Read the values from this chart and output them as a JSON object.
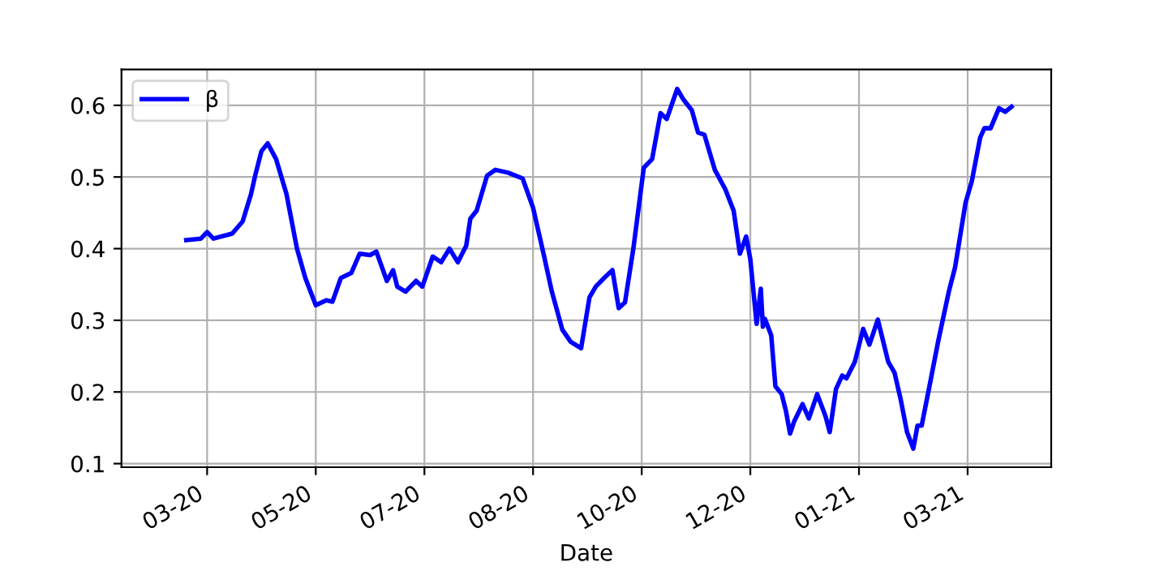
{
  "chart_data": {
    "type": "line",
    "xlabel": "Date",
    "x": [
      "2020-03-15",
      "2020-03-22",
      "2020-03-25",
      "2020-03-28",
      "2020-04-06",
      "2020-04-11",
      "2020-04-15",
      "2020-04-17",
      "2020-04-20",
      "2020-04-23",
      "2020-04-27",
      "2020-05-02",
      "2020-05-07",
      "2020-05-11",
      "2020-05-16",
      "2020-05-21",
      "2020-05-24",
      "2020-05-28",
      "2020-06-02",
      "2020-06-06",
      "2020-06-11",
      "2020-06-14",
      "2020-06-19",
      "2020-06-22",
      "2020-06-24",
      "2020-06-28",
      "2020-07-03",
      "2020-07-06",
      "2020-07-11",
      "2020-07-15",
      "2020-07-19",
      "2020-07-23",
      "2020-07-27",
      "2020-07-29",
      "2020-08-01",
      "2020-08-06",
      "2020-08-10",
      "2020-08-16",
      "2020-08-23",
      "2020-08-28",
      "2020-09-02",
      "2020-09-06",
      "2020-09-11",
      "2020-09-15",
      "2020-09-20",
      "2020-09-24",
      "2020-09-27",
      "2020-10-01",
      "2020-10-05",
      "2020-10-08",
      "2020-10-11",
      "2020-10-15",
      "2020-10-20",
      "2020-10-24",
      "2020-10-28",
      "2020-10-31",
      "2020-11-05",
      "2020-11-08",
      "2020-11-12",
      "2020-11-15",
      "2020-11-18",
      "2020-11-23",
      "2020-11-28",
      "2020-12-02",
      "2020-12-05",
      "2020-12-08",
      "2020-12-10",
      "2020-12-13",
      "2020-12-15",
      "2020-12-16",
      "2020-12-17",
      "2020-12-20",
      "2020-12-22",
      "2020-12-25",
      "2020-12-27",
      "2020-12-29",
      "2020-12-31",
      "2021-01-04",
      "2021-01-07",
      "2021-01-11",
      "2021-01-15",
      "2021-01-17",
      "2021-01-20",
      "2021-01-23",
      "2021-01-25",
      "2021-01-29",
      "2021-02-02",
      "2021-02-05",
      "2021-02-09",
      "2021-02-14",
      "2021-02-17",
      "2021-02-20",
      "2021-02-23",
      "2021-02-26",
      "2021-02-28",
      "2021-03-02",
      "2021-03-06",
      "2021-03-10",
      "2021-03-15",
      "2021-03-18",
      "2021-03-23",
      "2021-03-26",
      "2021-03-30",
      "2021-04-01",
      "2021-04-04",
      "2021-04-08",
      "2021-04-11",
      "2021-04-14"
    ],
    "series": [
      {
        "name": "β",
        "color": "#0000ff",
        "values": [
          0.412,
          0.414,
          0.423,
          0.414,
          0.421,
          0.438,
          0.476,
          0.502,
          0.536,
          0.547,
          0.525,
          0.476,
          0.4,
          0.359,
          0.321,
          0.328,
          0.326,
          0.359,
          0.366,
          0.393,
          0.391,
          0.396,
          0.355,
          0.37,
          0.347,
          0.34,
          0.355,
          0.347,
          0.389,
          0.381,
          0.4,
          0.381,
          0.404,
          0.442,
          0.453,
          0.502,
          0.51,
          0.506,
          0.498,
          0.457,
          0.393,
          0.34,
          0.287,
          0.27,
          0.261,
          0.332,
          0.347,
          0.359,
          0.37,
          0.317,
          0.325,
          0.4,
          0.513,
          0.525,
          0.589,
          0.581,
          0.623,
          0.608,
          0.593,
          0.562,
          0.559,
          0.51,
          0.483,
          0.453,
          0.393,
          0.417,
          0.385,
          0.295,
          0.344,
          0.291,
          0.302,
          0.279,
          0.208,
          0.197,
          0.174,
          0.142,
          0.159,
          0.183,
          0.163,
          0.197,
          0.166,
          0.144,
          0.204,
          0.223,
          0.219,
          0.242,
          0.288,
          0.266,
          0.301,
          0.242,
          0.227,
          0.189,
          0.144,
          0.121,
          0.153,
          0.153,
          0.212,
          0.272,
          0.34,
          0.374,
          0.464,
          0.494,
          0.555,
          0.568,
          0.568,
          0.596,
          0.591,
          0.598
        ]
      }
    ],
    "xlim": [
      "2020-02-13",
      "2021-05-03"
    ],
    "xticks": [
      {
        "value": "2020-03-25",
        "label": "03-20"
      },
      {
        "value": "2020-05-16",
        "label": "05-20"
      },
      {
        "value": "2020-07-07",
        "label": "07-20"
      },
      {
        "value": "2020-08-28",
        "label": "08-20"
      },
      {
        "value": "2020-10-19",
        "label": "10-20"
      },
      {
        "value": "2020-12-10",
        "label": "12-20"
      },
      {
        "value": "2021-01-31",
        "label": "01-21"
      },
      {
        "value": "2021-03-24",
        "label": "03-21"
      }
    ],
    "ylim": [
      0.095,
      0.65
    ],
    "yticks": [
      0.1,
      0.2,
      0.3,
      0.4,
      0.5,
      0.6
    ],
    "grid": true,
    "legend": "top left",
    "marker": "none",
    "line_style": "solid"
  }
}
